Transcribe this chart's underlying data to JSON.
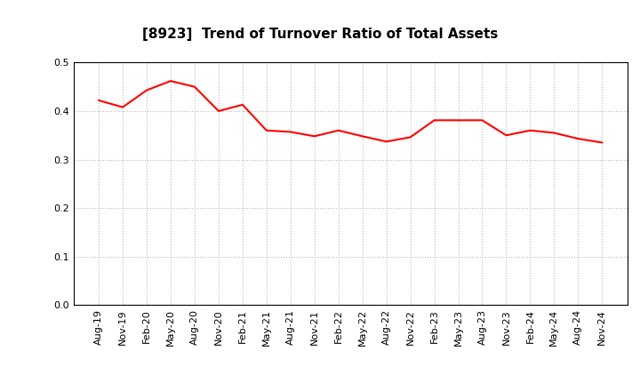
{
  "title": "[8923]  Trend of Turnover Ratio of Total Assets",
  "labels": [
    "Aug-19",
    "Nov-19",
    "Feb-20",
    "May-20",
    "Aug-20",
    "Nov-20",
    "Feb-21",
    "May-21",
    "Aug-21",
    "Nov-21",
    "Feb-22",
    "May-22",
    "Aug-22",
    "Nov-22",
    "Feb-23",
    "May-23",
    "Aug-23",
    "Nov-23",
    "Feb-24",
    "May-24",
    "Aug-24",
    "Nov-24"
  ],
  "values": [
    0.422,
    0.408,
    0.443,
    0.462,
    0.45,
    0.4,
    0.413,
    0.36,
    0.357,
    0.348,
    0.36,
    0.348,
    0.337,
    0.346,
    0.381,
    0.381,
    0.381,
    0.35,
    0.36,
    0.355,
    0.343,
    0.335
  ],
  "line_color": "#FF0000",
  "line_width": 1.5,
  "ylim": [
    0.0,
    0.5
  ],
  "yticks": [
    0.0,
    0.1,
    0.2,
    0.3,
    0.4,
    0.5
  ],
  "ytick_labels": [
    "0.0",
    "0.1",
    "0.2",
    "0.3",
    "0.4",
    "0.5"
  ],
  "grid_color": "#bbbbbb",
  "background_color": "#ffffff",
  "title_fontsize": 11,
  "tick_fontsize": 8
}
